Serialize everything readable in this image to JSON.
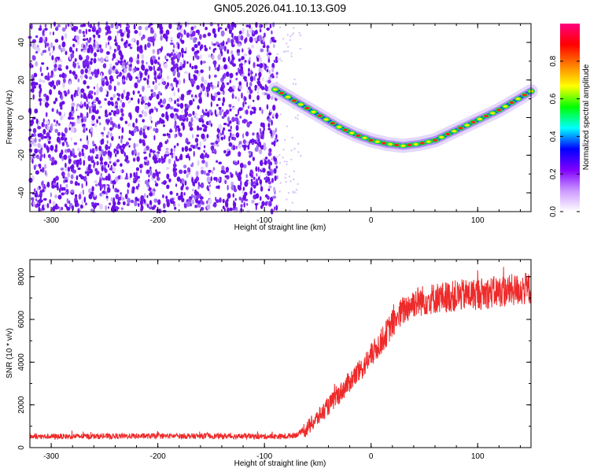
{
  "title": "GN05.2026.041.10.13.G09",
  "colors": {
    "snr_line": "#ee2a2a",
    "speckle": "#7b22f0",
    "frame": "#000000"
  },
  "chart_data": [
    {
      "type": "heatmap",
      "name": "spectrogram",
      "xlabel": "Height of straight line (km)",
      "ylabel": "Frequency (Hz)",
      "xlim": [
        -320,
        150
      ],
      "ylim": [
        -50,
        50
      ],
      "xticks": [
        -300,
        -200,
        -100,
        0,
        100
      ],
      "yticks": [
        -40,
        -20,
        0,
        20,
        40
      ],
      "colorbar": {
        "label": "Normalized spectral amplitude",
        "range": [
          0.0,
          1.0
        ],
        "ticks": [
          0.0,
          0.2,
          0.4,
          0.6,
          0.8
        ],
        "tick_labels": [
          "0.0",
          "0.2",
          "0.4",
          "0.6",
          "0.8"
        ],
        "stops": [
          "#ffffff",
          "#cc99ff",
          "#8000ff",
          "#0000ff",
          "#00ffff",
          "#00ff00",
          "#ffff00",
          "#ff8000",
          "#ff0000",
          "#ff0080"
        ]
      },
      "noise_region_x": [
        -320,
        -88
      ],
      "track": {
        "description": "Doppler frequency track",
        "x": [
          -90,
          -75,
          -60,
          -45,
          -30,
          -15,
          0,
          15,
          30,
          45,
          60,
          75,
          90,
          105,
          120,
          135,
          150
        ],
        "freq": [
          15,
          10,
          5,
          0,
          -5,
          -9,
          -12,
          -14,
          -15,
          -14,
          -12,
          -8,
          -4,
          0,
          4,
          9,
          14
        ]
      }
    },
    {
      "type": "line",
      "name": "snr",
      "xlabel": "Height of straight line (km)",
      "ylabel": "SNR (10 * v/v)",
      "xlim": [
        -320,
        150
      ],
      "ylim": [
        0,
        8800
      ],
      "xticks": [
        -300,
        -200,
        -100,
        0,
        100
      ],
      "yticks": [
        0,
        2000,
        4000,
        6000,
        8000
      ],
      "series": [
        {
          "name": "SNR",
          "x": [
            -320,
            -300,
            -250,
            -200,
            -150,
            -100,
            -80,
            -70,
            -60,
            -50,
            -40,
            -30,
            -20,
            -10,
            0,
            10,
            20,
            30,
            40,
            60,
            80,
            100,
            120,
            150
          ],
          "y": [
            520,
            520,
            530,
            540,
            540,
            520,
            520,
            600,
            900,
            1400,
            1950,
            2500,
            3100,
            3600,
            4300,
            5000,
            5800,
            6400,
            6800,
            7000,
            7100,
            7200,
            7300,
            7450
          ]
        }
      ]
    }
  ]
}
